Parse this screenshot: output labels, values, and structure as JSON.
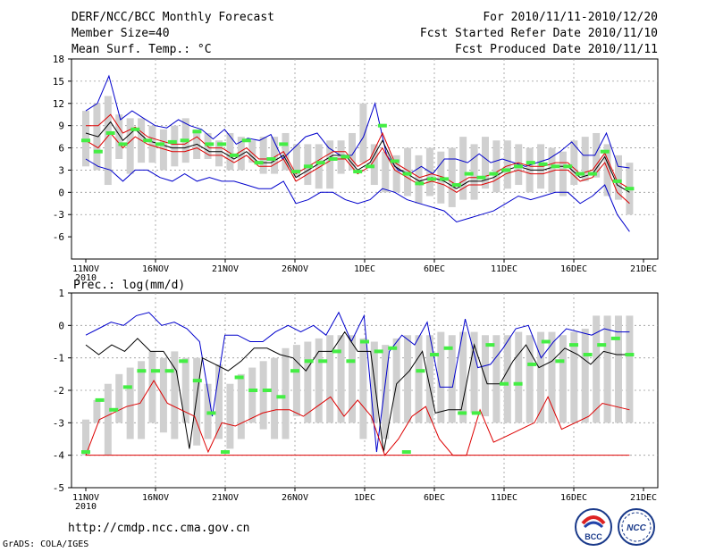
{
  "header": {
    "title": "DERF/NCC/BCC Monthly Forecast",
    "member_size": "Member Size=40",
    "variable1": "Mean Surf. Temp.: °C",
    "period": "For 2010/11/11-2010/12/20",
    "refer_date": "Fcst Started Refer Date 2010/11/10",
    "produced_date": "Fcst Produced Date 2010/11/11"
  },
  "footer": {
    "url": "http://cmdp.ncc.cma.gov.cn",
    "credit": "GrADS: COLA/IGES",
    "logo_left_text": "BCC",
    "logo_right_text": "NCC"
  },
  "colors": {
    "box": "#d0d0d0",
    "mean": "#000000",
    "upper": "#0000cc",
    "lower": "#dd0000",
    "marker": "#44ee44",
    "grid": "#999999"
  },
  "chart_data": [
    {
      "type": "line",
      "title": "Mean Surf. Temp.: °C",
      "x_ticks": [
        "11NOV",
        "16NOV",
        "21NOV",
        "26NOV",
        "1DEC",
        "6DEC",
        "11DEC",
        "16DEC",
        "21DEC"
      ],
      "x_tick_sub": "2010",
      "ylim": [
        -9,
        18
      ],
      "y_ticks": [
        -6,
        -3,
        0,
        3,
        6,
        9,
        12,
        15,
        18
      ],
      "y_tick_labels": [
        "-6",
        "-3",
        "0",
        "3",
        "6",
        "9",
        "12",
        "15",
        "18"
      ],
      "grid": true,
      "box_lower": [
        3.5,
        3.0,
        1.0,
        4.5,
        2.5,
        4.0,
        4.0,
        3.0,
        3.5,
        4.0,
        4.5,
        4.5,
        3.5,
        3.0,
        3.0,
        4.0,
        2.5,
        2.5,
        3.0,
        2.0,
        1.0,
        0.5,
        0.5,
        2.5,
        3.0,
        4.0,
        1.0,
        0.0,
        0.0,
        -0.5,
        -1.5,
        -0.5,
        -1.5,
        -2.0,
        -1.0,
        -1.0,
        0.5,
        0.0,
        0.5,
        1.0,
        0.0,
        0.5,
        0.0,
        -0.5,
        1.0,
        1.5,
        2.0,
        -0.5,
        -1.0,
        -3.0
      ],
      "box_upper": [
        11.0,
        12.0,
        13.0,
        10.5,
        10.0,
        10.0,
        9.0,
        8.5,
        9.0,
        10.0,
        8.5,
        8.0,
        7.0,
        8.0,
        7.5,
        7.0,
        7.5,
        7.5,
        8.0,
        6.5,
        6.5,
        6.5,
        7.0,
        7.0,
        8.0,
        12.0,
        6.5,
        5.5,
        5.0,
        6.0,
        5.0,
        6.0,
        5.5,
        6.0,
        7.5,
        6.5,
        7.5,
        7.0,
        7.0,
        6.5,
        6.0,
        6.5,
        6.0,
        5.5,
        7.0,
        7.5,
        8.0,
        6.5,
        5.0,
        4.0
      ],
      "series": [
        {
          "name": "upper",
          "values": [
            11.0,
            12.0,
            15.7,
            9.8,
            11.0,
            10.0,
            9.0,
            8.7,
            9.8,
            9.0,
            8.5,
            7.2,
            8.5,
            6.5,
            7.3,
            7.0,
            7.8,
            4.5,
            6.0,
            7.5,
            8.0,
            6.0,
            5.0,
            5.0,
            7.5,
            12.0,
            5.0,
            3.0,
            2.5,
            3.5,
            2.5,
            4.5,
            4.5,
            4.0,
            5.2,
            4.0,
            4.5,
            4.0,
            3.5,
            4.0,
            4.5,
            5.5,
            6.8,
            5.0,
            5.0,
            8.0,
            3.5,
            3.3
          ]
        },
        {
          "name": "mean",
          "values": [
            8.0,
            7.5,
            9.5,
            7.0,
            8.5,
            7.0,
            6.5,
            6.0,
            6.0,
            6.5,
            5.5,
            5.5,
            4.5,
            5.5,
            4.0,
            4.0,
            5.0,
            2.0,
            3.0,
            4.0,
            5.0,
            5.0,
            3.0,
            4.0,
            7.0,
            3.5,
            2.5,
            1.5,
            2.0,
            1.5,
            0.5,
            1.5,
            1.5,
            2.0,
            3.0,
            3.5,
            3.0,
            3.0,
            3.5,
            3.5,
            2.0,
            2.5,
            4.8,
            1.0,
            0.0
          ]
        },
        {
          "name": "lower",
          "values": [
            9.0,
            9.0,
            10.5,
            8.0,
            8.8,
            7.5,
            7.0,
            6.5,
            6.5,
            7.5,
            6.0,
            6.0,
            5.0,
            6.0,
            4.5,
            4.5,
            5.5,
            2.5,
            3.5,
            4.5,
            5.5,
            5.5,
            3.5,
            4.5,
            8.0,
            4.0,
            3.0,
            2.0,
            2.5,
            2.0,
            1.0,
            2.0,
            2.0,
            2.5,
            3.5,
            4.0,
            3.5,
            3.5,
            4.0,
            4.0,
            2.5,
            3.0,
            5.3,
            1.5,
            0.5
          ]
        },
        {
          "name": "lower_red",
          "values": [
            7.0,
            6.0,
            8.0,
            6.0,
            7.5,
            6.5,
            6.0,
            5.5,
            5.5,
            6.0,
            5.0,
            5.0,
            4.0,
            5.0,
            3.5,
            3.5,
            4.5,
            1.5,
            2.5,
            3.5,
            4.5,
            4.5,
            2.5,
            3.5,
            6.0,
            3.0,
            2.0,
            1.0,
            1.5,
            1.0,
            0.0,
            1.0,
            1.0,
            1.5,
            2.5,
            3.0,
            2.5,
            2.5,
            3.0,
            3.0,
            1.5,
            2.0,
            4.0,
            0.0,
            -1.5
          ]
        },
        {
          "name": "min",
          "values": [
            4.5,
            3.5,
            3.0,
            1.5,
            3.0,
            3.0,
            2.0,
            1.5,
            2.5,
            1.5,
            2.0,
            1.5,
            1.5,
            1.0,
            0.5,
            0.5,
            1.5,
            -1.5,
            -1.0,
            0.0,
            0.0,
            -1.0,
            -1.5,
            -1.0,
            0.5,
            0.0,
            -1.0,
            -1.5,
            -2.0,
            -2.5,
            -4.0,
            -3.5,
            -3.0,
            -2.5,
            -1.5,
            -0.5,
            -1.0,
            -0.5,
            0.0,
            0.0,
            -1.5,
            -0.5,
            1.0,
            -3.0,
            -5.3
          ]
        }
      ],
      "markers": [
        7.0,
        5.5,
        8.0,
        6.5,
        8.5,
        7.0,
        6.5,
        6.8,
        7.0,
        8.2,
        6.5,
        6.5,
        5.0,
        7.0,
        4.0,
        4.5,
        6.5,
        2.8,
        3.5,
        4.0,
        4.5,
        4.8,
        2.8,
        3.5,
        9.0,
        4.2,
        2.5,
        1.2,
        1.8,
        1.8,
        1.0,
        2.5,
        2.0,
        2.5,
        3.0,
        3.5,
        4.0,
        3.8,
        3.5,
        3.5,
        2.5,
        2.5,
        5.5,
        1.5,
        0.5
      ]
    },
    {
      "type": "line",
      "title": "Prec.: log(mm/d)",
      "x_ticks": [
        "11NOV",
        "16NOV",
        "21NOV",
        "26NOV",
        "1DEC",
        "6DEC",
        "11DEC",
        "16DEC",
        "21DEC"
      ],
      "x_tick_sub": "2010",
      "ylim": [
        -5,
        1
      ],
      "y_ticks": [
        -5,
        -4,
        -3,
        -2,
        -1,
        0,
        1
      ],
      "y_tick_labels": [
        "-5",
        "-4",
        "-3",
        "-2",
        "-1",
        "0",
        "1"
      ],
      "grid": true,
      "box_lower": [
        -4.0,
        -3.0,
        -4.0,
        -3.0,
        -3.5,
        -3.5,
        -3.0,
        -3.3,
        -3.5,
        -3.0,
        -3.7,
        -3.5,
        -3.5,
        -3.8,
        -3.5,
        -3.0,
        -3.2,
        -3.5,
        -3.5,
        -2.8,
        -3.0,
        -3.0,
        -3.0,
        -3.0,
        -3.0,
        -3.5,
        -3.0,
        -3.5,
        -3.0,
        -3.0,
        -3.0,
        -3.0,
        -3.0,
        -3.0,
        -3.0,
        -2.7,
        -2.8,
        -3.0,
        -3.0,
        -3.0,
        -3.0,
        -3.0,
        -3.0,
        -3.0,
        -3.0,
        -3.0,
        -3.0,
        -3.0,
        -3.0,
        -3.0
      ],
      "box_upper": [
        -2.9,
        -2.3,
        -1.8,
        -1.5,
        -1.3,
        -1.1,
        -0.8,
        -1.0,
        -0.8,
        -1.0,
        -1.0,
        -1.8,
        -1.2,
        -1.8,
        -1.5,
        -1.3,
        -1.1,
        -1.0,
        -0.7,
        -0.6,
        -0.5,
        -0.4,
        -0.3,
        -0.3,
        -0.3,
        -0.4,
        -0.5,
        -0.6,
        -0.4,
        -0.3,
        -0.3,
        -0.3,
        -0.2,
        -0.3,
        -0.2,
        -0.2,
        -0.3,
        -0.3,
        -0.3,
        -0.2,
        -0.3,
        -0.2,
        -0.2,
        -0.3,
        -0.2,
        -0.1,
        0.3,
        0.3,
        0.3,
        0.3
      ],
      "series": [
        {
          "name": "upper",
          "values": [
            -0.3,
            -0.1,
            0.1,
            0.0,
            0.3,
            0.4,
            0.0,
            0.1,
            -0.1,
            -0.5,
            -2.8,
            -0.3,
            -0.3,
            -0.5,
            -0.5,
            -0.2,
            0.0,
            -0.2,
            0.0,
            -0.3,
            0.4,
            -0.5,
            0.3,
            -3.9,
            -0.8,
            -0.3,
            -0.6,
            0.1,
            -1.9,
            -1.9,
            0.2,
            -1.3,
            -1.2,
            -0.7,
            -0.1,
            0.0,
            -1.0,
            -0.5,
            -0.1,
            -0.2,
            -0.3,
            -0.1,
            -0.2,
            -0.2
          ]
        },
        {
          "name": "mean",
          "values": [
            -0.6,
            -0.9,
            -0.6,
            -0.8,
            -0.4,
            -0.8,
            -0.8,
            -1.4,
            -3.8,
            -1.0,
            -1.2,
            -1.4,
            -1.1,
            -0.7,
            -0.7,
            -0.9,
            -1.0,
            -1.4,
            -0.8,
            -0.8,
            -0.2,
            -0.8,
            -0.8,
            -3.9,
            -1.8,
            -1.4,
            -0.8,
            -2.7,
            -2.6,
            -2.6,
            -0.6,
            -1.8,
            -1.8,
            -1.1,
            -0.6,
            -1.3,
            -1.1,
            -0.7,
            -0.9,
            -1.2,
            -0.8,
            -0.9,
            -0.9
          ]
        },
        {
          "name": "lower",
          "values": [
            -4.0,
            -2.9,
            -2.7,
            -2.5,
            -2.4,
            -1.7,
            -2.4,
            -2.6,
            -2.8,
            -3.9,
            -3.0,
            -3.1,
            -2.9,
            -2.7,
            -2.6,
            -2.6,
            -2.8,
            -2.5,
            -2.2,
            -2.8,
            -2.3,
            -2.8,
            -4.0,
            -3.5,
            -2.8,
            -2.5,
            -3.5,
            -4.0,
            -4.0,
            -2.6,
            -3.6,
            -3.4,
            -3.2,
            -3.0,
            -2.2,
            -3.2,
            -3.0,
            -2.8,
            -2.4,
            -2.5,
            -2.6
          ]
        }
      ],
      "markers": [
        -3.9,
        -2.3,
        -2.6,
        -1.9,
        -1.4,
        -1.4,
        -1.4,
        -1.1,
        -1.7,
        -2.7,
        -3.9,
        -1.6,
        -2.0,
        -2.0,
        -2.2,
        -1.4,
        -1.1,
        -1.1,
        -0.8,
        -1.1,
        -0.5,
        -0.8,
        -0.7,
        -3.9,
        -1.4,
        -0.9,
        -0.7,
        -2.7,
        -2.7,
        -0.6,
        -1.8,
        -1.8,
        -1.2,
        -0.5,
        -1.1,
        -0.6,
        -0.9,
        -0.6,
        -0.4,
        -0.9
      ]
    }
  ]
}
